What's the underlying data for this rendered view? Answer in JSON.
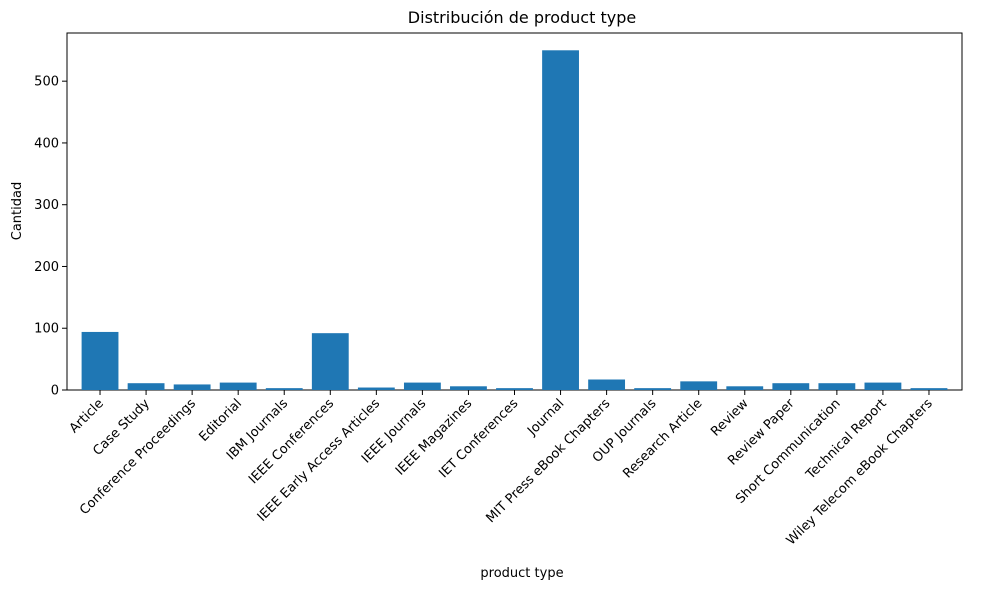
{
  "chart_data": {
    "type": "bar",
    "title": "Distribución de product type",
    "xlabel": "product type",
    "ylabel": "Cantidad",
    "categories": [
      "Article",
      "Case Study",
      "Conference Proceedings",
      "Editorial",
      "IBM Journals",
      "IEEE Conferences",
      "IEEE Early Access Articles",
      "IEEE Journals",
      "IEEE Magazines",
      "IET Conferences",
      "Journal",
      "MIT Press eBook Chapters",
      "OUP Journals",
      "Research Article",
      "Review",
      "Review Paper",
      "Short Communication",
      "Technical Report",
      "Wiley Telecom eBook Chapters"
    ],
    "values": [
      94,
      11,
      9,
      12,
      3,
      92,
      4,
      12,
      6,
      3,
      550,
      17,
      3,
      14,
      6,
      11,
      11,
      12,
      3
    ],
    "ylim": [
      0,
      578
    ],
    "yticks": [
      0,
      100,
      200,
      300,
      400,
      500
    ],
    "grid": false,
    "bar_color": "#1f77b4"
  }
}
